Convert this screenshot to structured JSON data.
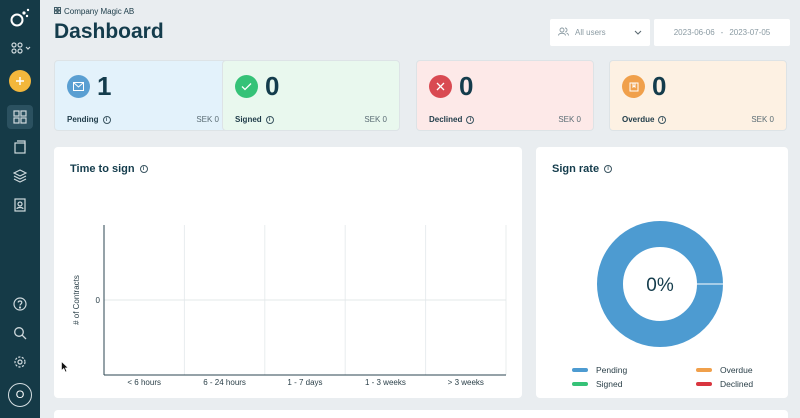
{
  "header": {
    "company": "Company Magic AB",
    "title": "Dashboard",
    "users_select": "All users",
    "date_from": "2023-06-06",
    "date_sep": "-",
    "date_to": "2023-07-05"
  },
  "sidebar": {
    "avatar_initial": "O",
    "icons": [
      "logo-icon",
      "organization-icon",
      "add-icon",
      "dashboard-icon",
      "documents-icon",
      "layers-icon",
      "contacts-icon",
      "help-icon",
      "search-icon",
      "settings-icon"
    ]
  },
  "cards": [
    {
      "label": "Pending",
      "count": "1",
      "amount": "SEK 0",
      "color": "#5a9fd2",
      "bg": "#e3f2fb"
    },
    {
      "label": "Signed",
      "count": "0",
      "amount": "SEK 0",
      "color": "#35c277",
      "bg": "#e9f8ee"
    },
    {
      "label": "Declined",
      "count": "0",
      "amount": "SEK 0",
      "color": "#d94a52",
      "bg": "#fde9e8"
    },
    {
      "label": "Overdue",
      "count": "0",
      "amount": "SEK 0",
      "color": "#f0a04b",
      "bg": "#fdf1e3"
    }
  ],
  "time_to_sign": {
    "title": "Time to sign"
  },
  "sign_rate": {
    "title": "Sign rate",
    "center_label": "0%",
    "legend": [
      {
        "name": "Pending",
        "color": "#4d9bd1"
      },
      {
        "name": "Overdue",
        "color": "#f0a04b"
      },
      {
        "name": "Signed",
        "color": "#35c277"
      },
      {
        "name": "Declined",
        "color": "#d9353f"
      }
    ]
  },
  "chart_data": [
    {
      "type": "bar",
      "title": "Time to sign",
      "xlabel": "",
      "ylabel": "# of Contracts",
      "categories": [
        "< 6 hours",
        "6 - 24 hours",
        "1 - 7 days",
        "1 - 3 weeks",
        "> 3 weeks"
      ],
      "values": [
        0,
        0,
        0,
        0,
        0
      ],
      "y_ticks": [
        "0"
      ],
      "grid": true
    },
    {
      "type": "pie",
      "title": "Sign rate",
      "labels": [
        "Pending",
        "Overdue",
        "Signed",
        "Declined"
      ],
      "values": [
        1,
        0,
        0,
        0
      ],
      "center_label": "0%",
      "donut": true,
      "legend": "bottom"
    }
  ]
}
